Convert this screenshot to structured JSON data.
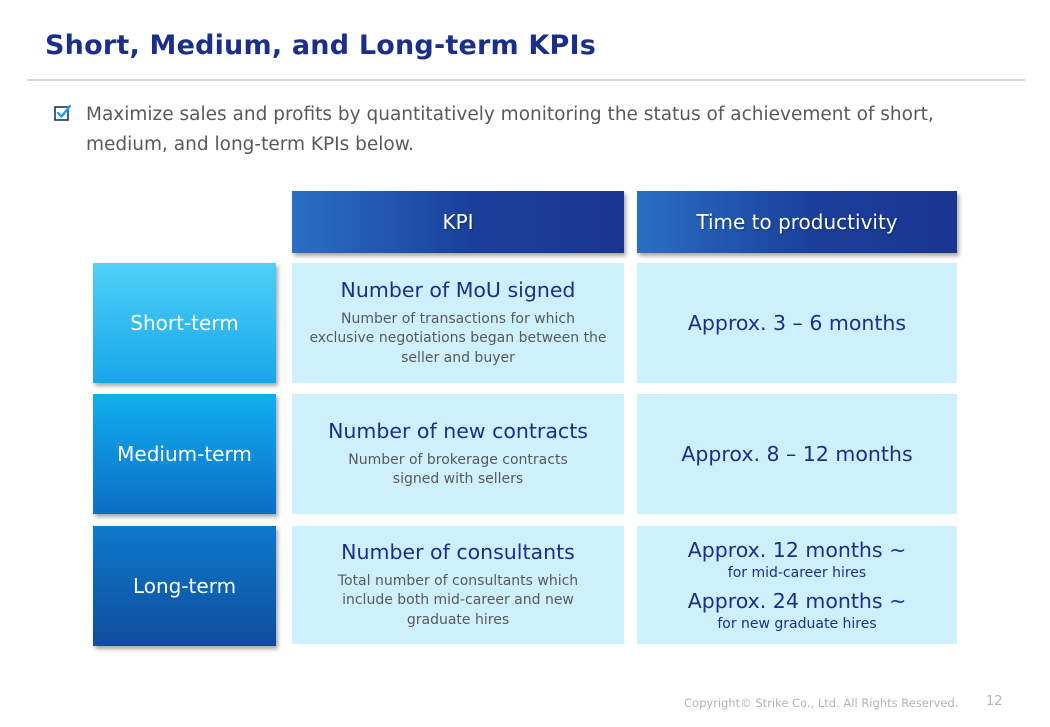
{
  "header": {
    "title": "Short, Medium, and Long-term KPIs"
  },
  "intro": {
    "text": "Maximize sales and profits by quantitatively monitoring the status of achievement of short, medium, and long-term KPIs below."
  },
  "table": {
    "col_headers": {
      "kpi": "KPI",
      "time": "Time to productivity"
    },
    "rows": [
      {
        "label": "Short-term",
        "kpi_title": "Number of MoU signed",
        "kpi_desc": [
          "Number of transactions for which",
          "exclusive negotiations began between the",
          "seller and buyer"
        ],
        "time_main": "Approx. 3 – 6 months"
      },
      {
        "label": "Medium-term",
        "kpi_title": "Number of new contracts",
        "kpi_desc": [
          "Number of brokerage contracts",
          "signed with sellers"
        ],
        "time_main": "Approx. 8 – 12 months"
      },
      {
        "label": "Long-term",
        "kpi_title": "Number of consultants",
        "kpi_desc": [
          "Total number of consultants which",
          "include both mid-career and new",
          "graduate hires"
        ],
        "time_entries": [
          {
            "main": "Approx. 12 months ~",
            "sub": "for mid-career hires"
          },
          {
            "main": "Approx. 24 months ~",
            "sub": "for new graduate hires"
          }
        ]
      }
    ]
  },
  "footer": {
    "copyright": "Copyright© Strike Co., Ltd. All Rights Reserved.",
    "page": "12"
  },
  "colors": {
    "title": "#1a2f8a",
    "cell_bg": "#cdf0fc",
    "header_bg": "#1a3f9a"
  }
}
